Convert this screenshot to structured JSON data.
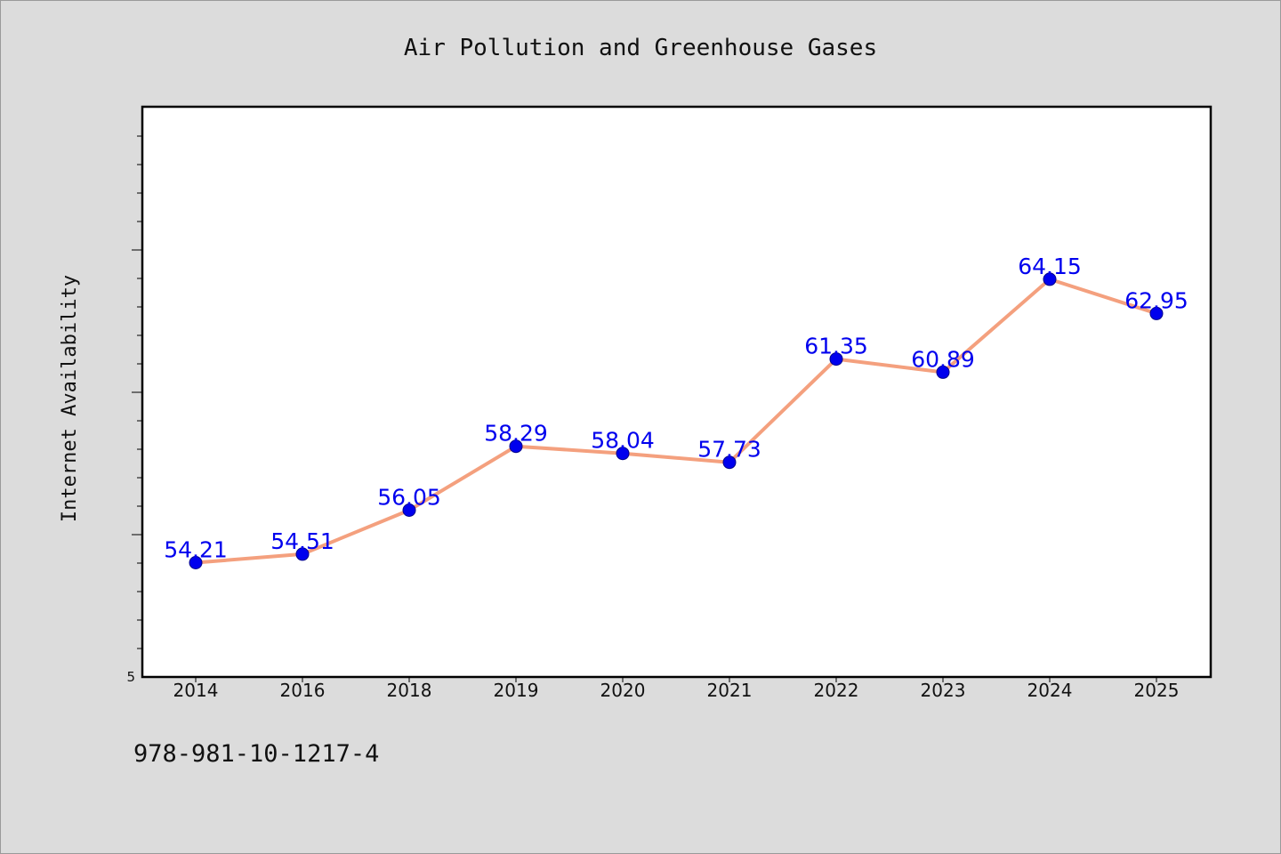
{
  "chart_data": {
    "type": "line",
    "title": "Air Pollution and Greenhouse Gases",
    "xlabel": "",
    "ylabel": "Internet Availability",
    "categories": [
      "2014",
      "2016",
      "2018",
      "2019",
      "2020",
      "2021",
      "2022",
      "2023",
      "2024",
      "2025"
    ],
    "series": [
      {
        "values": [
          54.21,
          54.51,
          56.05,
          58.29,
          58.04,
          57.73,
          61.35,
          60.89,
          64.15,
          62.95
        ]
      }
    ],
    "data_labels": [
      "54.21",
      "54.51",
      "56.05",
      "58.29",
      "58.04",
      "57.73",
      "61.35",
      "60.89",
      "64.15",
      "62.95"
    ],
    "y_tick_labels": [
      "5"
    ],
    "ylim": [
      50.2,
      70.2
    ],
    "grid": false,
    "line_color": "#f4a07e",
    "marker_color": "#0000ee",
    "label_color": "#0000ee"
  },
  "footer": {
    "code": "978-981-10-1217-4"
  }
}
